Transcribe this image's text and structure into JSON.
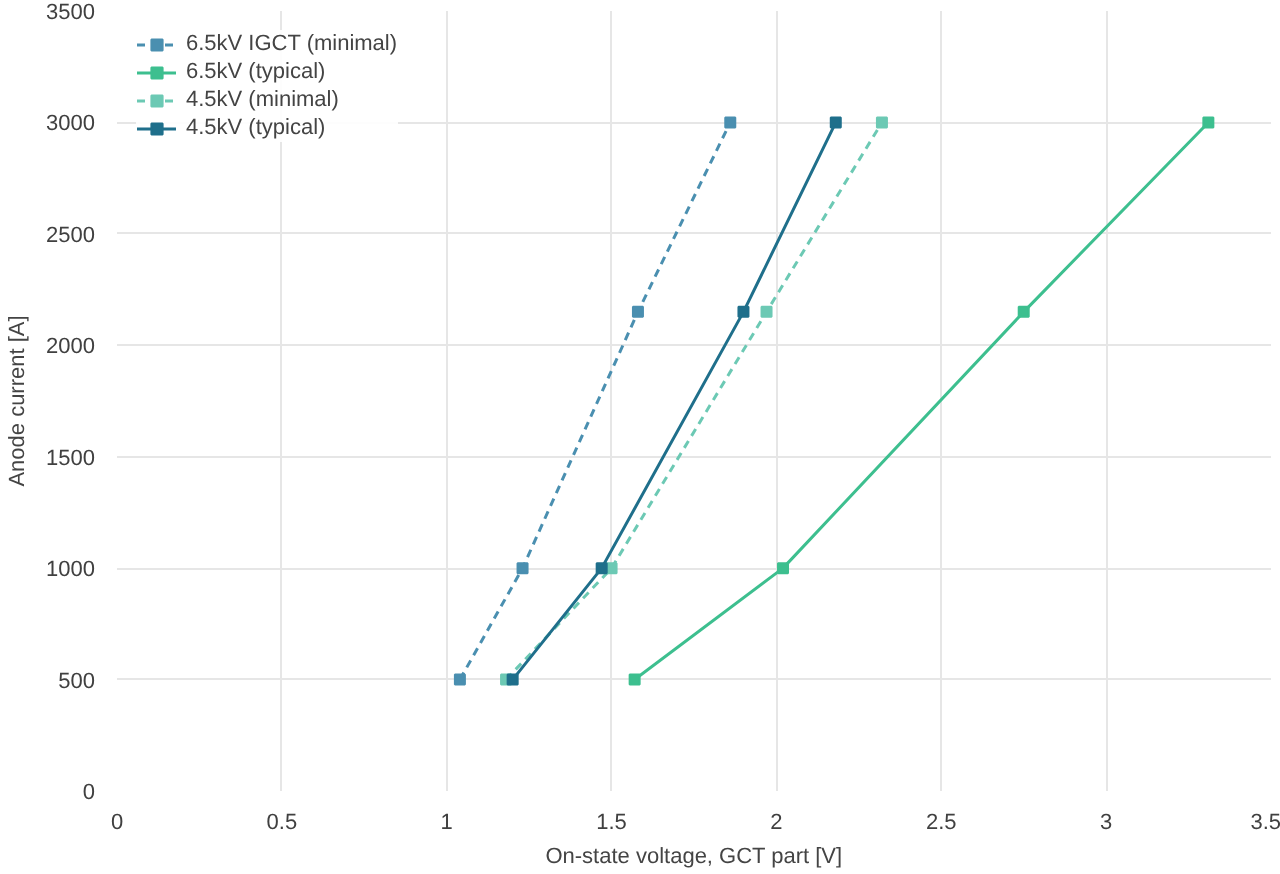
{
  "chart_data": {
    "type": "line",
    "xlabel": "On-state voltage, GCT part [V]",
    "ylabel": "Anode current [A]",
    "xlim": [
      0,
      3.5
    ],
    "xticks": [
      0,
      0.5,
      1,
      1.5,
      2,
      2.5,
      3,
      3.5
    ],
    "ylim": [
      0,
      3500
    ],
    "yticks": [
      0,
      500,
      1000,
      1500,
      2000,
      2500,
      3000,
      3500
    ],
    "grid": true,
    "legend": "top left",
    "marker": "square",
    "series": [
      {
        "name": "6.5kV IGCT (minimal)",
        "color": "#4a8fb0",
        "line_style": "dashed",
        "x": [
          1.04,
          1.23,
          1.58,
          1.86
        ],
        "values": [
          500,
          1000,
          2150,
          3000
        ]
      },
      {
        "name": "6.5kV (typical)",
        "color": "#3dbf8f",
        "line_style": "solid",
        "x": [
          1.57,
          2.02,
          2.75,
          3.31
        ],
        "values": [
          500,
          1000,
          2150,
          3000
        ]
      },
      {
        "name": "4.5kV (minimal)",
        "color": "#6cc9b4",
        "line_style": "dashed",
        "x": [
          1.18,
          1.5,
          1.97,
          2.32
        ],
        "values": [
          500,
          1000,
          2150,
          3000
        ]
      },
      {
        "name": "4.5kV (typical)",
        "color": "#1f6f8b",
        "line_style": "solid",
        "x": [
          1.2,
          1.47,
          1.9,
          2.18
        ],
        "values": [
          500,
          1000,
          2150,
          3000
        ]
      }
    ]
  }
}
